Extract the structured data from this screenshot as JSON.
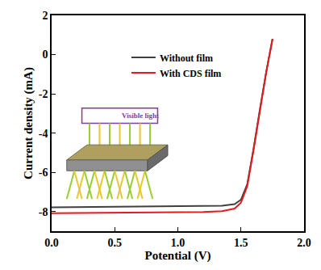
{
  "chart_data": {
    "type": "line",
    "xlabel": "Potential (V)",
    "ylabel": "Current density (mA)",
    "x": [
      0,
      0.2,
      0.4,
      0.6,
      0.8,
      1.0,
      1.2,
      1.35,
      1.45,
      1.5,
      1.55,
      1.6,
      1.65,
      1.7,
      1.75
    ],
    "series": [
      {
        "name": "Without film",
        "color": "#404040",
        "values": [
          -7.78,
          -7.77,
          -7.76,
          -7.75,
          -7.74,
          -7.73,
          -7.72,
          -7.7,
          -7.62,
          -7.4,
          -6.6,
          -4.8,
          -2.8,
          -0.9,
          0.8
        ]
      },
      {
        "name": "With CDS film",
        "color": "#e41a1c",
        "values": [
          -8.08,
          -8.07,
          -8.06,
          -8.05,
          -8.04,
          -8.03,
          -8.02,
          -7.98,
          -7.85,
          -7.55,
          -6.7,
          -4.85,
          -2.8,
          -0.9,
          0.8
        ]
      }
    ],
    "xlim": [
      0,
      2
    ],
    "xticks": [
      {
        "value": 0,
        "label": "0.0"
      },
      0.5,
      {
        "value": 1,
        "label": "1.0"
      },
      1.5,
      {
        "value": 2,
        "label": "2.0"
      }
    ],
    "ylim": [
      -9,
      2
    ],
    "yticks": [
      -8,
      -6,
      -4,
      -2,
      0,
      2
    ],
    "grid": false,
    "legend": "upper center",
    "annotations": [
      "Visible light"
    ]
  }
}
